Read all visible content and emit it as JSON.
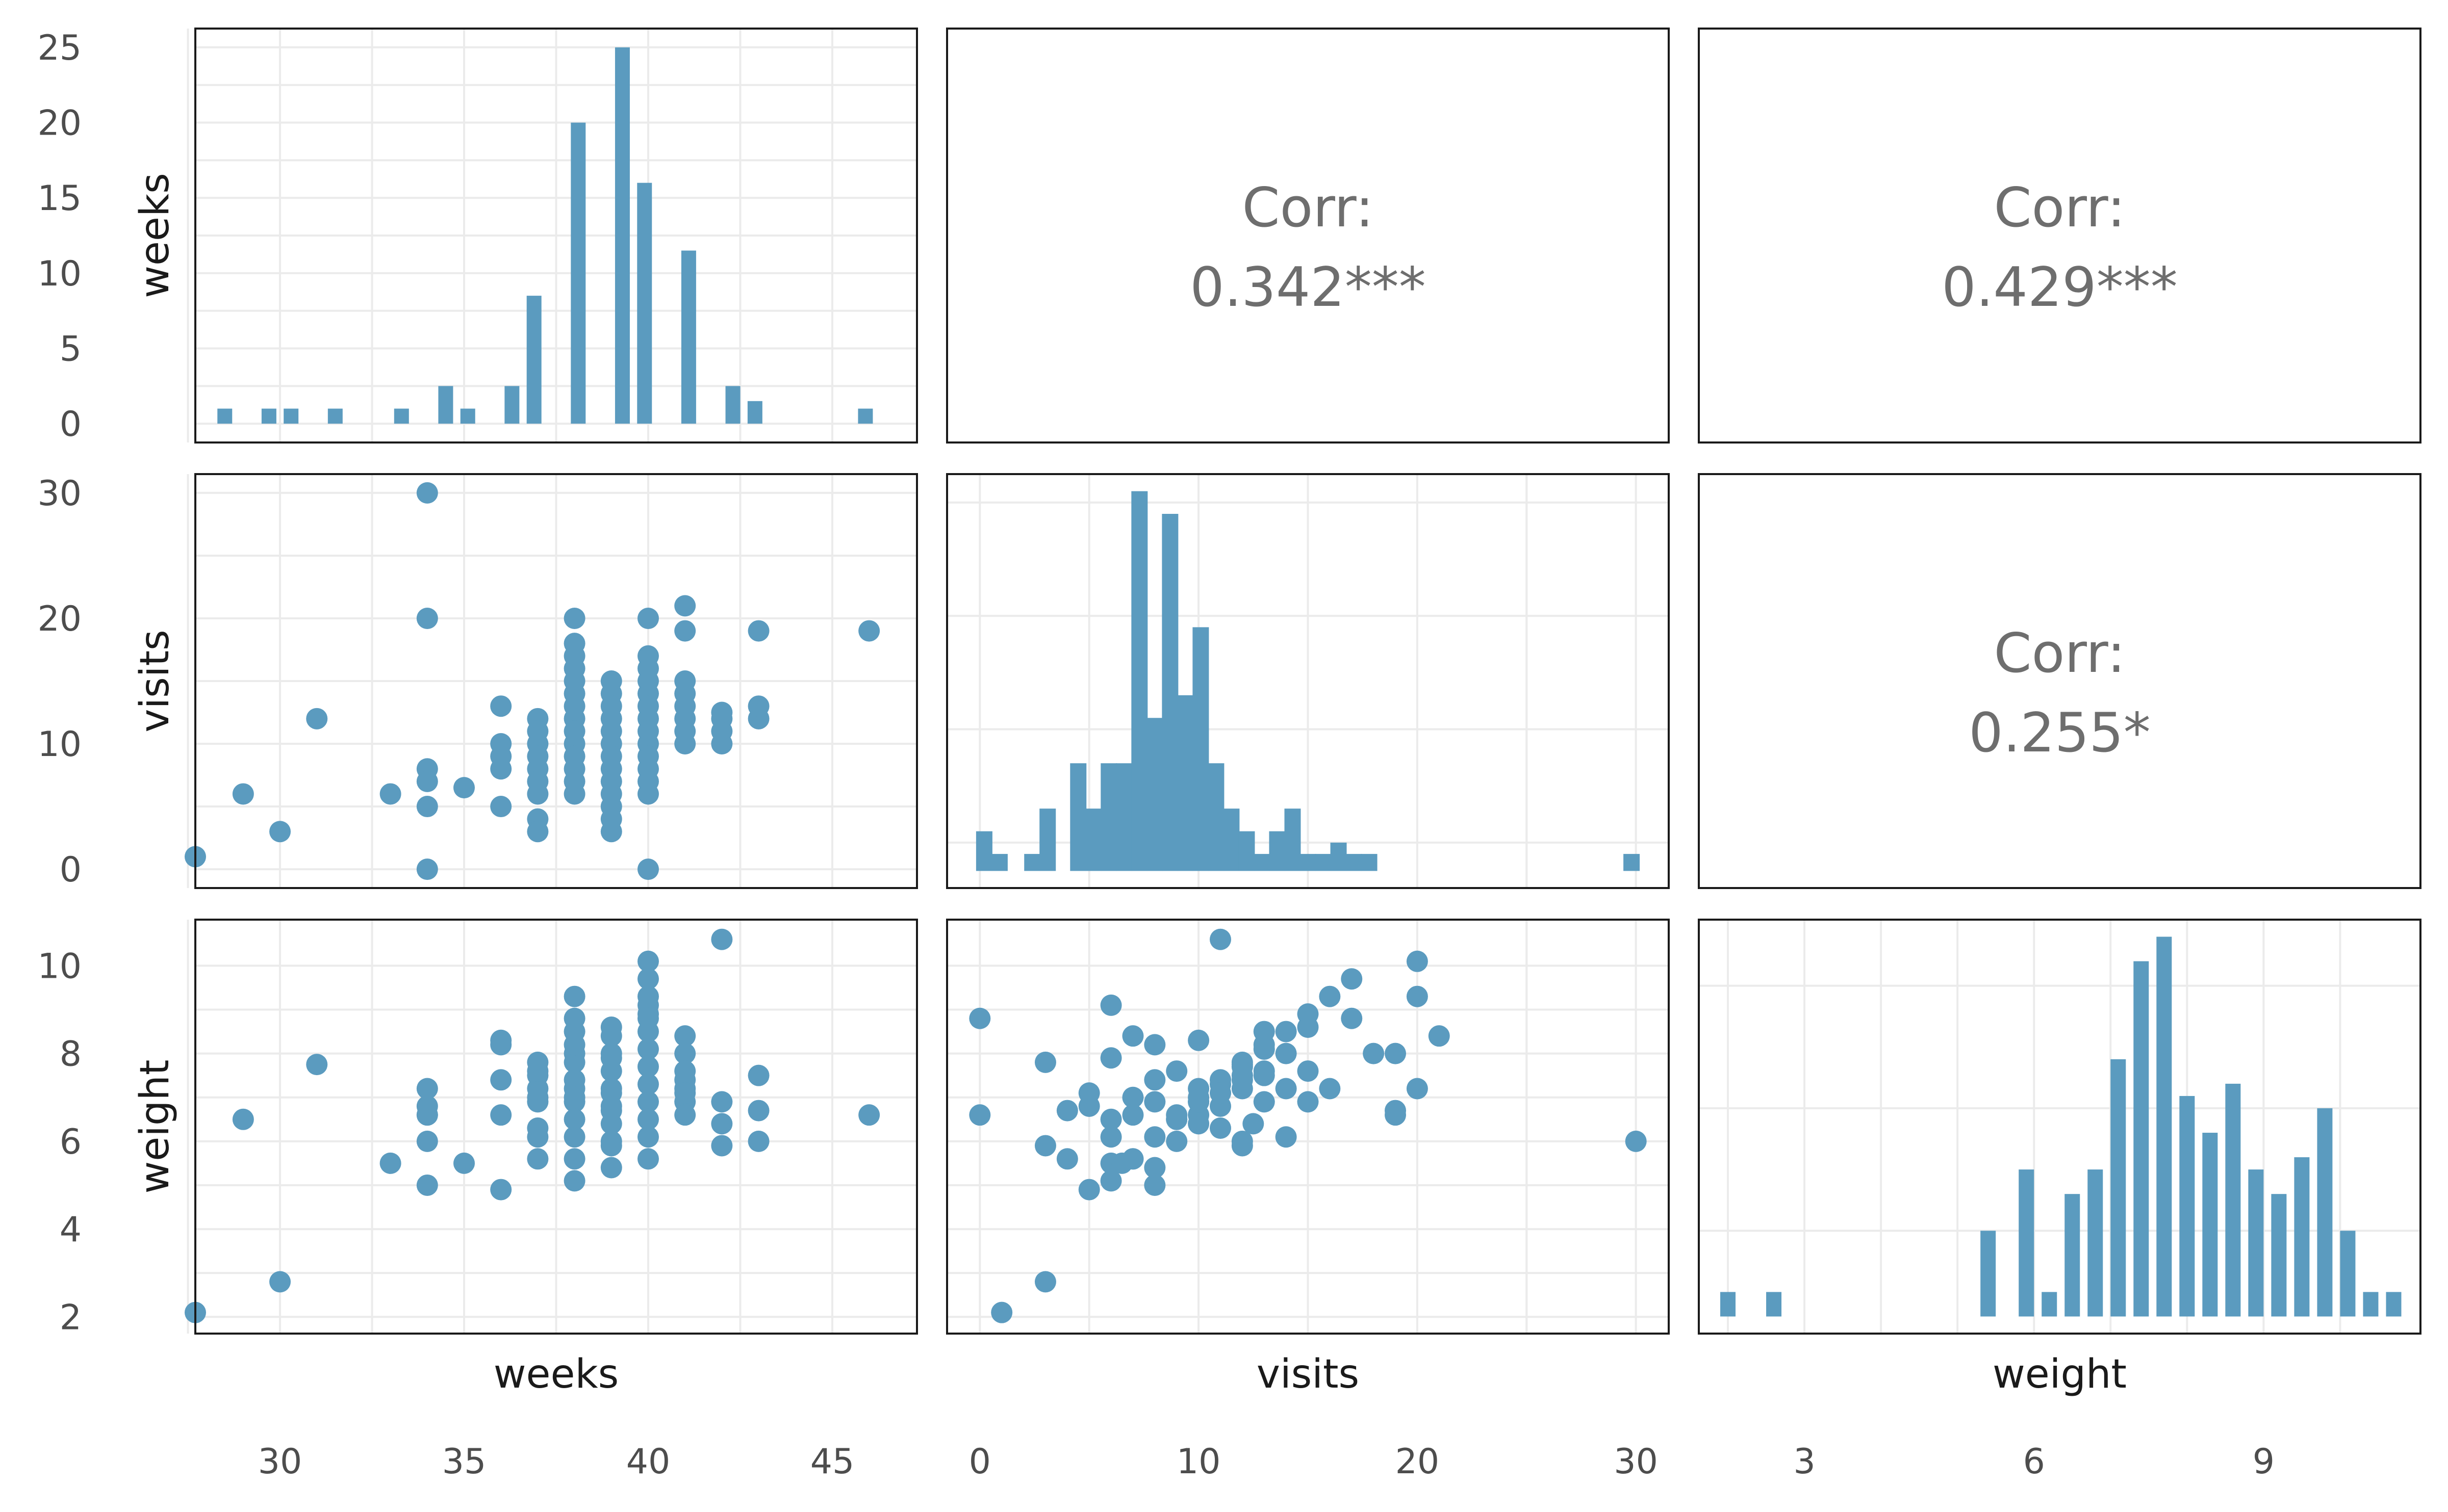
{
  "chart_data": {
    "type": "scatter",
    "title": "",
    "variables": [
      "weeks",
      "visits",
      "weight"
    ],
    "color": "#5b9bbf",
    "grid": true,
    "axes": {
      "weeks": {
        "label": "weeks",
        "ticks": [
          30,
          35,
          40,
          45
        ],
        "tick_labels": [
          "30",
          "35",
          "40",
          "45"
        ],
        "range": [
          27.7,
          47.3
        ]
      },
      "visits": {
        "label": "visits",
        "ticks": [
          0,
          10,
          20,
          30
        ],
        "tick_labels": [
          "0",
          "10",
          "20",
          "30"
        ],
        "range": [
          -1.5,
          31.5
        ]
      },
      "weight": {
        "label": "weight",
        "ticks": [
          2,
          4,
          6,
          8,
          10
        ],
        "tick_labels": [
          "2",
          "4",
          "6",
          "8",
          "10"
        ],
        "x_ticks": [
          3,
          6,
          9
        ],
        "x_tick_labels": [
          "3",
          "6",
          "9"
        ],
        "range": [
          1.62,
          11.05
        ]
      }
    },
    "weeks_hist_axis": {
      "ticks": [
        0,
        5,
        10,
        15,
        20,
        25
      ],
      "tick_labels": [
        "0",
        "5",
        "10",
        "15",
        "20",
        "25"
      ],
      "range": [
        -1.25,
        26.25
      ]
    },
    "correlations": [
      {
        "row": "weeks",
        "col": "visits",
        "label": "Corr:",
        "value": "0.342***"
      },
      {
        "row": "weeks",
        "col": "weight",
        "label": "Corr:",
        "value": "0.429***"
      },
      {
        "row": "visits",
        "col": "weight",
        "label": "Corr:",
        "value": "0.255*"
      }
    ],
    "histograms": {
      "weeks": {
        "centers": [
          28.5,
          29.7,
          30.3,
          31.5,
          33.3,
          34.5,
          35.1,
          36.3,
          36.9,
          38.1,
          39.3,
          39.9,
          41.1,
          42.3,
          42.9,
          45.9
        ],
        "counts": [
          1,
          1,
          1,
          1,
          1,
          2.5,
          1,
          2.5,
          8.5,
          20,
          25,
          16,
          11.5,
          2.5,
          1.5,
          1
        ]
      },
      "visits": {
        "centers": [
          0.2,
          0.9,
          2.4,
          3.1,
          4.5,
          5.2,
          5.9,
          6.6,
          7.3,
          8.0,
          8.7,
          9.4,
          10.1,
          10.8,
          11.5,
          12.2,
          12.9,
          13.6,
          14.3,
          15.0,
          15.7,
          16.4,
          17.1,
          17.8,
          29.8
        ],
        "counts": [
          3.5,
          1.5,
          1.5,
          5.5,
          9.5,
          5.5,
          9.5,
          9.5,
          33.5,
          13.5,
          31.5,
          15.5,
          21.5,
          9.5,
          5.5,
          3.5,
          1.5,
          3.5,
          5.5,
          1.5,
          1.5,
          2.5,
          1.5,
          1.5,
          1.5
        ],
        "y_gridlines": [
          2.5,
          12.5,
          22.5,
          32.5
        ]
      },
      "weight": {
        "centers": [
          2.0,
          2.6,
          5.4,
          5.9,
          6.2,
          6.5,
          6.8,
          7.1,
          7.4,
          7.7,
          8.0,
          8.3,
          8.6,
          8.9,
          9.2,
          9.5,
          9.8,
          10.1,
          10.4,
          10.7
        ],
        "counts": [
          1,
          1,
          3.5,
          6,
          1,
          5,
          6,
          10.5,
          14.5,
          15.5,
          9,
          7.5,
          9.5,
          6,
          5,
          6.5,
          8.5,
          3.5,
          1,
          1
        ],
        "y_gridlines": [
          3.5,
          8.5,
          13.5
        ]
      }
    },
    "points": {
      "weeks": [
        27.7,
        29.0,
        30.0,
        31.0,
        33.0,
        34.0,
        34.0,
        34.0,
        34.0,
        34.0,
        34.0,
        35.0,
        36.0,
        36.0,
        36.0,
        36.0,
        36.0,
        37.0,
        37.0,
        37.0,
        37.0,
        37.0,
        37.0,
        37.0,
        37.0,
        37.0,
        38.0,
        38.0,
        38.0,
        38.0,
        38.0,
        38.0,
        38.0,
        38.0,
        38.0,
        38.0,
        38.0,
        38.0,
        38.0,
        38.0,
        39.0,
        39.0,
        39.0,
        39.0,
        39.0,
        39.0,
        39.0,
        39.0,
        39.0,
        39.0,
        39.0,
        39.0,
        39.0,
        40.0,
        40.0,
        40.0,
        40.0,
        40.0,
        40.0,
        40.0,
        40.0,
        40.0,
        40.0,
        40.0,
        40.0,
        40.0,
        40.0,
        41.0,
        41.0,
        41.0,
        41.0,
        41.0,
        41.0,
        41.0,
        41.0,
        42.0,
        42.0,
        42.0,
        42.0,
        43.0,
        43.0,
        43.0,
        46.0
      ],
      "visits": [
        1.0,
        6.0,
        3.0,
        12.0,
        6.0,
        20.0,
        8.0,
        0.0,
        30.0,
        7.0,
        5.0,
        6.5,
        13.0,
        9.0,
        8.0,
        10.0,
        5.0,
        12.0,
        11.0,
        10.0,
        8.0,
        6.0,
        4.0,
        9.0,
        7.0,
        3.0,
        20.0,
        18.0,
        17.0,
        16.0,
        15.0,
        14.0,
        13.0,
        12.0,
        11.0,
        10.0,
        9.0,
        8.0,
        7.0,
        6.0,
        15.0,
        14.0,
        13.0,
        12.0,
        11.0,
        10.0,
        9.0,
        8.0,
        7.0,
        6.0,
        5.0,
        4.0,
        3.0,
        20.0,
        17.0,
        16.0,
        15.0,
        14.0,
        13.0,
        12.0,
        11.0,
        10.0,
        9.0,
        8.0,
        7.0,
        6.0,
        0.0,
        21.0,
        19.0,
        15.0,
        14.0,
        13.0,
        12.0,
        11.0,
        10.0,
        12.0,
        11.0,
        10.0,
        12.5,
        12.0,
        19.0,
        13.0,
        19.0
      ],
      "weight": [
        2.1,
        6.5,
        2.8,
        7.75,
        5.5,
        7.2,
        5.0,
        6.6,
        6.0,
        6.6,
        6.8,
        5.5,
        8.2,
        6.6,
        7.4,
        8.3,
        4.9,
        7.5,
        6.3,
        7.2,
        6.9,
        6.1,
        5.6,
        7.6,
        7.0,
        7.8,
        9.3,
        8.0,
        8.8,
        7.2,
        6.9,
        6.1,
        8.5,
        7.8,
        7.4,
        7.0,
        6.5,
        8.2,
        5.6,
        5.1,
        8.6,
        8.0,
        7.6,
        7.2,
        6.8,
        6.4,
        6.0,
        5.4,
        8.4,
        7.9,
        7.1,
        6.7,
        5.9,
        10.1,
        9.7,
        9.3,
        8.9,
        8.5,
        8.1,
        7.7,
        7.3,
        6.9,
        6.5,
        6.1,
        5.6,
        9.1,
        8.8,
        8.4,
        8.0,
        7.6,
        7.2,
        6.9,
        7.4,
        7.1,
        6.6,
        5.9,
        10.6,
        6.9,
        6.4,
        6.0,
        6.7,
        7.5,
        6.6
      ]
    }
  }
}
